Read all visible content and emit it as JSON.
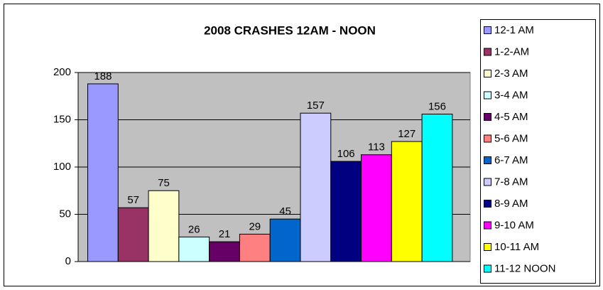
{
  "chart_data": {
    "type": "bar",
    "title": "2008 CRASHES 12AM - NOON",
    "categories": [
      null
    ],
    "series": [
      {
        "name": "12-1 AM",
        "color": "#9999ff",
        "values": [
          188
        ]
      },
      {
        "name": "1-2-AM",
        "color": "#993366",
        "values": [
          57
        ]
      },
      {
        "name": "2-3 AM",
        "color": "#ffffcc",
        "values": [
          75
        ]
      },
      {
        "name": "3-4 AM",
        "color": "#ccffff",
        "values": [
          26
        ]
      },
      {
        "name": "4-5 AM",
        "color": "#660066",
        "values": [
          21
        ]
      },
      {
        "name": "5-6 AM",
        "color": "#ff8080",
        "values": [
          29
        ]
      },
      {
        "name": "6-7 AM",
        "color": "#0066cc",
        "values": [
          45
        ]
      },
      {
        "name": "7-8 AM",
        "color": "#ccccff",
        "values": [
          157
        ]
      },
      {
        "name": "8-9 AM",
        "color": "#000080",
        "values": [
          106
        ]
      },
      {
        "name": "9-10 AM",
        "color": "#ff00ff",
        "values": [
          113
        ]
      },
      {
        "name": "10-11 AM",
        "color": "#ffff00",
        "values": [
          127
        ]
      },
      {
        "name": "11-12 NOON",
        "color": "#00ffff",
        "values": [
          156
        ]
      }
    ],
    "ylim": [
      0,
      200
    ],
    "yticks": [
      0,
      50,
      100,
      150,
      200
    ],
    "grid": true,
    "legend": "right"
  }
}
